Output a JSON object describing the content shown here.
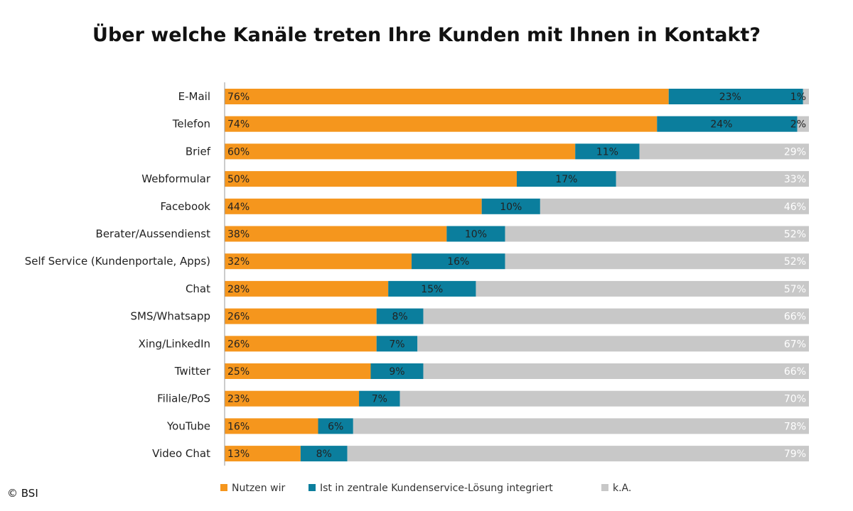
{
  "chart_data": {
    "type": "bar",
    "stacked": true,
    "orientation": "horizontal",
    "title": "Über welche Kanäle treten Ihre Kunden mit Ihnen in Kontakt?",
    "categories": [
      "E-Mail",
      "Telefon",
      "Brief",
      "Webformular",
      "Facebook",
      "Berater/Aussendienst",
      "Self Service (Kundenportale, Apps)",
      "Chat",
      "SMS/Whatsapp",
      "Xing/LinkedIn",
      "Twitter",
      "Filiale/PoS",
      "YouTube",
      "Video Chat"
    ],
    "series": [
      {
        "name": "Nutzen wir",
        "color": "#F5961D",
        "values": [
          76,
          74,
          60,
          50,
          44,
          38,
          32,
          28,
          26,
          26,
          25,
          23,
          16,
          13
        ]
      },
      {
        "name": "Ist in zentrale Kundenservice-Lösung integriert",
        "color": "#0B7E9D",
        "values": [
          23,
          24,
          11,
          17,
          10,
          10,
          16,
          15,
          8,
          7,
          9,
          7,
          6,
          8
        ]
      },
      {
        "name": "k.A.",
        "color": "#C8C8C8",
        "values": [
          1,
          2,
          29,
          33,
          46,
          52,
          52,
          57,
          66,
          67,
          66,
          70,
          78,
          79
        ]
      }
    ],
    "value_suffix": "%",
    "xlim": [
      0,
      100
    ],
    "legend_position": "bottom"
  },
  "copyright": "© BSI"
}
